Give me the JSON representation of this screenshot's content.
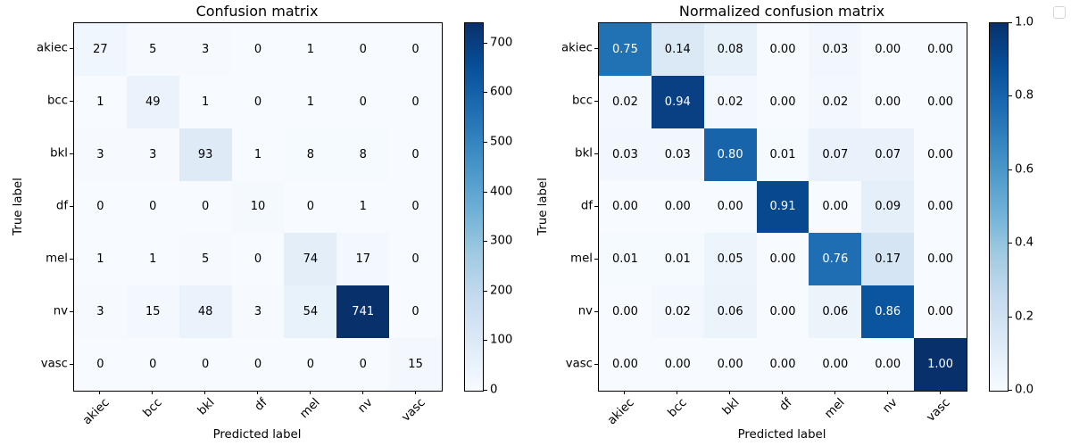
{
  "figure": {
    "background": "#ffffff",
    "font_color": "#000000",
    "has_empty_legend_box": true
  },
  "colors": {
    "colormap_name": "Blues",
    "blues_anchors": [
      "#f7fbff",
      "#deebf7",
      "#c6dbef",
      "#9ecae1",
      "#6baed6",
      "#4292c6",
      "#2171b5",
      "#08519c",
      "#08306b"
    ],
    "cell_text_dark": "#000000",
    "cell_text_light": "#ffffff",
    "axes_border": "#000000"
  },
  "chart_data": [
    {
      "type": "heatmap",
      "title": "Confusion matrix",
      "xlabel": "Predicted label",
      "ylabel": "True label",
      "categories": [
        "akiec",
        "bcc",
        "bkl",
        "df",
        "mel",
        "nv",
        "vasc"
      ],
      "rows": [
        [
          27,
          5,
          3,
          0,
          1,
          0,
          0
        ],
        [
          1,
          49,
          1,
          0,
          1,
          0,
          0
        ],
        [
          3,
          3,
          93,
          1,
          8,
          8,
          0
        ],
        [
          0,
          0,
          0,
          10,
          0,
          1,
          0
        ],
        [
          1,
          1,
          5,
          0,
          74,
          17,
          0
        ],
        [
          3,
          15,
          48,
          3,
          54,
          741,
          0
        ],
        [
          0,
          0,
          0,
          0,
          0,
          0,
          15
        ]
      ],
      "vmin": 0,
      "vmax": 741,
      "value_format": "int",
      "legend_position": "colorbar-right",
      "grid": false,
      "colorbar_tick_values": [
        0,
        100,
        200,
        300,
        400,
        500,
        600,
        700
      ],
      "colorbar_tick_labels": [
        "0",
        "100",
        "200",
        "300",
        "400",
        "500",
        "600",
        "700"
      ]
    },
    {
      "type": "heatmap",
      "title": "Normalized confusion matrix",
      "xlabel": "Predicted label",
      "ylabel": "True label",
      "categories": [
        "akiec",
        "bcc",
        "bkl",
        "df",
        "mel",
        "nv",
        "vasc"
      ],
      "rows": [
        [
          0.75,
          0.14,
          0.08,
          0.0,
          0.03,
          0.0,
          0.0
        ],
        [
          0.02,
          0.94,
          0.02,
          0.0,
          0.02,
          0.0,
          0.0
        ],
        [
          0.03,
          0.03,
          0.8,
          0.01,
          0.07,
          0.07,
          0.0
        ],
        [
          0.0,
          0.0,
          0.0,
          0.91,
          0.0,
          0.09,
          0.0
        ],
        [
          0.01,
          0.01,
          0.05,
          0.0,
          0.76,
          0.17,
          0.0
        ],
        [
          0.0,
          0.02,
          0.06,
          0.0,
          0.06,
          0.86,
          0.0
        ],
        [
          0.0,
          0.0,
          0.0,
          0.0,
          0.0,
          0.0,
          1.0
        ]
      ],
      "vmin": 0,
      "vmax": 1,
      "value_format": "2dp",
      "legend_position": "colorbar-right",
      "grid": false,
      "colorbar_tick_values": [
        0.0,
        0.2,
        0.4,
        0.6,
        0.8,
        1.0
      ],
      "colorbar_tick_labels": [
        "0.0",
        "0.2",
        "0.4",
        "0.6",
        "0.8",
        "1.0"
      ]
    }
  ]
}
